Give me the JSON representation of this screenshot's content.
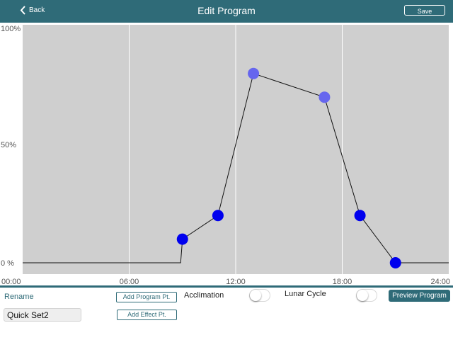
{
  "header": {
    "back_label": "Back",
    "title": "Edit Program",
    "save_label": "Save"
  },
  "chart_data": {
    "type": "line",
    "x_unit": "hours",
    "x_ticks": [
      "00:00",
      "06:00",
      "12:00",
      "18:00",
      "24:00"
    ],
    "y_ticks": [
      "100%",
      "50%",
      "0 %"
    ],
    "xlim": [
      0,
      24
    ],
    "ylim": [
      0,
      100
    ],
    "grid": true,
    "points": [
      {
        "x": 0,
        "y": 0,
        "marker": false
      },
      {
        "x": 8.9,
        "y": 0,
        "marker": false
      },
      {
        "x": 9.0,
        "y": 10,
        "marker": true,
        "color": "#0000ee"
      },
      {
        "x": 11.0,
        "y": 20,
        "marker": true,
        "color": "#0000ee"
      },
      {
        "x": 13.0,
        "y": 80,
        "marker": true,
        "color": "#6666ee"
      },
      {
        "x": 17.0,
        "y": 70,
        "marker": true,
        "color": "#6666ee"
      },
      {
        "x": 19.0,
        "y": 20,
        "marker": true,
        "color": "#0000ee"
      },
      {
        "x": 21.0,
        "y": 0,
        "marker": true,
        "color": "#0000ee"
      },
      {
        "x": 24,
        "y": 0,
        "marker": false
      }
    ],
    "colors": {
      "plot_bg": "#cfcfcf",
      "grid": "#ffffff",
      "line": "#111111"
    }
  },
  "controls": {
    "rename_label": "Rename",
    "program_name": "Quick Set2",
    "add_program_pt_label": "Add Program Pt.",
    "add_effect_pt_label": "Add Effect Pt.",
    "acclimation_label": "Acclimation",
    "acclimation_on": false,
    "lunar_cycle_label": "Lunar Cycle",
    "lunar_cycle_on": false,
    "preview_label": "Preview Program"
  },
  "colors": {
    "accent": "#2f6b78"
  }
}
